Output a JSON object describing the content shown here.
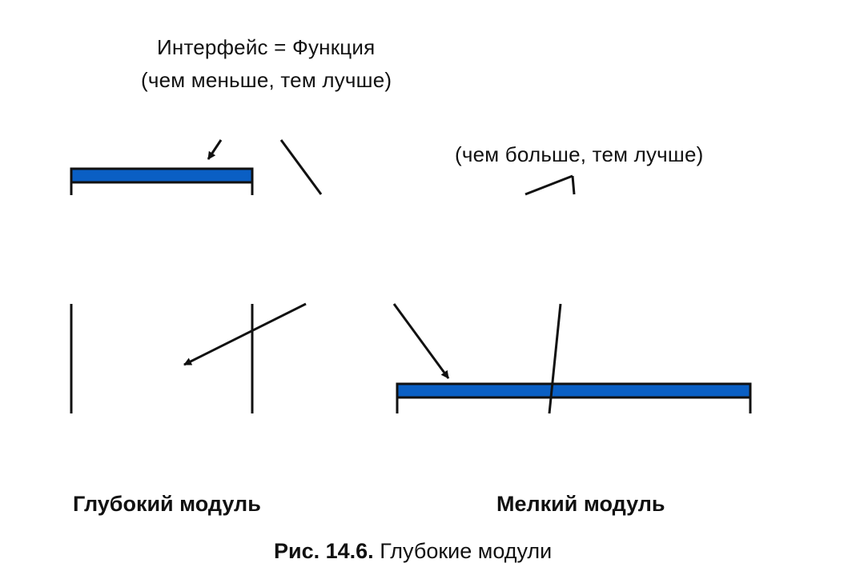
{
  "interface": {
    "line1": "Интерфейс = Функция",
    "line2": "(чем меньше, тем лучше)"
  },
  "function_annotation": "(чем больше, тем лучше)",
  "modules": {
    "deep": "Глубокий модуль",
    "shallow": "Мелкий модуль"
  },
  "caption": {
    "number": "Рис. 14.6.",
    "title": "Глубокие модули"
  },
  "colors": {
    "interface_bar": "#0a5fc4",
    "outline": "#111111"
  }
}
